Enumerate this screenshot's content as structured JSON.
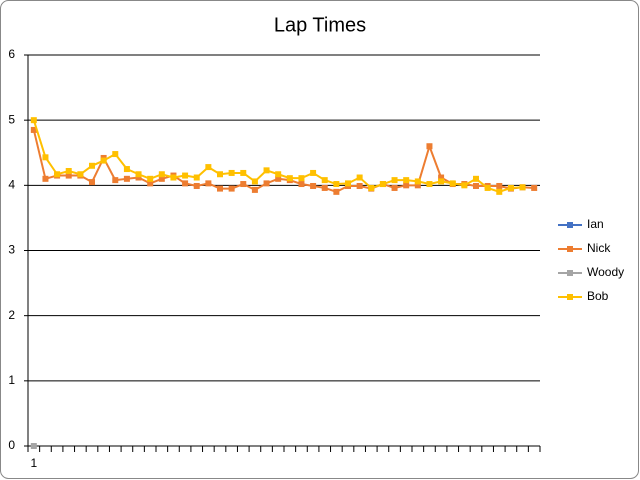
{
  "chart_data": {
    "type": "line",
    "title": "Lap Times",
    "categories": [
      "1",
      null,
      null,
      null,
      null,
      null,
      null,
      null,
      null,
      null,
      null,
      null,
      null,
      null,
      null,
      null,
      null,
      null,
      null,
      null,
      null,
      null,
      null,
      null,
      null,
      null,
      null,
      null,
      null,
      null,
      null,
      null,
      null,
      null,
      null,
      null,
      null,
      null,
      null,
      null,
      null,
      null,
      null,
      null
    ],
    "series": [
      {
        "name": "Ian",
        "color": "#4472c4",
        "values": [
          null,
          null,
          null,
          null,
          null,
          null,
          null,
          null,
          null,
          null,
          null,
          null,
          null,
          null,
          null,
          null,
          null,
          null,
          null,
          null,
          null,
          null,
          null,
          null,
          null,
          null,
          null,
          null,
          null,
          null,
          null,
          null,
          null,
          null,
          null,
          null,
          null,
          null,
          null,
          null,
          null,
          null,
          null,
          null
        ]
      },
      {
        "name": "Nick",
        "color": "#ed7d31",
        "values": [
          4.85,
          4.1,
          4.15,
          4.15,
          4.15,
          4.05,
          4.42,
          4.08,
          4.1,
          4.12,
          4.03,
          4.1,
          4.15,
          4.03,
          3.99,
          4.03,
          3.95,
          3.95,
          4.02,
          3.93,
          4.03,
          4.1,
          4.08,
          4.02,
          3.99,
          3.96,
          3.9,
          3.99,
          3.99,
          3.95,
          4.02,
          3.96,
          4.0,
          4.0,
          4.6,
          4.12,
          4.02,
          4.02,
          3.99,
          3.99,
          3.99,
          3.95,
          3.97,
          3.96
        ]
      },
      {
        "name": "Woody",
        "color": "#a5a5a5",
        "values": [
          0,
          null,
          null,
          null,
          null,
          null,
          null,
          null,
          null,
          null,
          null,
          null,
          null,
          null,
          null,
          null,
          null,
          null,
          null,
          null,
          null,
          null,
          null,
          null,
          null,
          null,
          null,
          null,
          null,
          null,
          null,
          null,
          null,
          null,
          null,
          null,
          null,
          null,
          null,
          null,
          null,
          null,
          null,
          null
        ]
      },
      {
        "name": "Bob",
        "color": "#ffc000",
        "values": [
          5.0,
          4.43,
          4.17,
          4.22,
          4.17,
          4.3,
          4.38,
          4.48,
          4.25,
          4.17,
          4.1,
          4.17,
          4.12,
          4.15,
          4.12,
          4.28,
          4.17,
          4.19,
          4.19,
          4.06,
          4.23,
          4.17,
          4.11,
          4.11,
          4.19,
          4.08,
          4.02,
          4.03,
          4.12,
          3.96,
          4.02,
          4.08,
          4.08,
          4.06,
          4.02,
          4.06,
          4.03,
          4.0,
          4.1,
          3.96,
          3.9,
          3.96,
          3.97,
          null
        ]
      }
    ],
    "ylim": [
      0,
      6
    ],
    "yticks": [
      0,
      1,
      2,
      3,
      4,
      5,
      6
    ],
    "grid": true,
    "legend": "right"
  }
}
